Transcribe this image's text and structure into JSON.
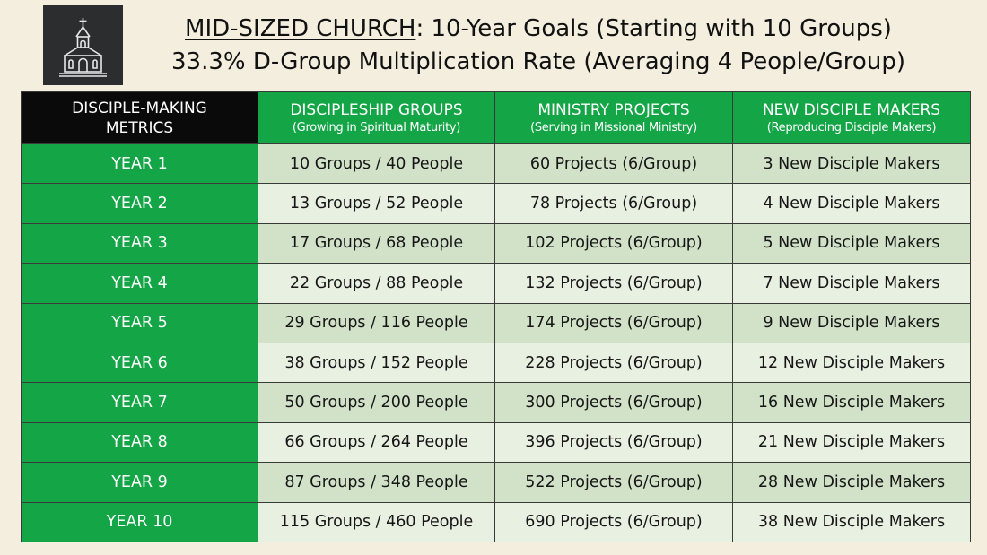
{
  "title": {
    "church": "MID-SIZED CHURCH",
    "rest": ": 10-Year Goals (Starting with 10 Groups)",
    "subtitle": "33.3% D-Group Multiplication Rate (Averaging 4 People/Group)"
  },
  "logo_icon": "church-icon",
  "colors": {
    "header_green": "#14a646",
    "corner_black": "#0a0a0a",
    "row_dark": "#d2e2c9",
    "row_light": "#e8f0e2",
    "background": "#f3eedd"
  },
  "table": {
    "headers": [
      {
        "main": "DISCIPLE-MAKING",
        "sub": "METRICS"
      },
      {
        "main": "DISCIPLESHIP GROUPS",
        "sub": "(Growing in Spiritual Maturity)"
      },
      {
        "main": "MINISTRY PROJECTS",
        "sub": "(Serving in Missional Ministry)"
      },
      {
        "main": "NEW DISCIPLE MAKERS",
        "sub": "(Reproducing Disciple Makers)"
      }
    ],
    "rows": [
      {
        "year": "YEAR 1",
        "groups": "10 Groups / 40 People",
        "projects": "60 Projects (6/Group)",
        "makers": "3 New Disciple Makers"
      },
      {
        "year": "YEAR 2",
        "groups": "13 Groups / 52 People",
        "projects": "78 Projects (6/Group)",
        "makers": "4 New Disciple Makers"
      },
      {
        "year": "YEAR 3",
        "groups": "17 Groups / 68 People",
        "projects": "102 Projects (6/Group)",
        "makers": "5 New Disciple Makers"
      },
      {
        "year": "YEAR 4",
        "groups": "22 Groups / 88 People",
        "projects": "132 Projects (6/Group)",
        "makers": "7 New Disciple Makers"
      },
      {
        "year": "YEAR 5",
        "groups": "29 Groups / 116 People",
        "projects": "174 Projects (6/Group)",
        "makers": "9 New Disciple Makers"
      },
      {
        "year": "YEAR 6",
        "groups": "38 Groups / 152 People",
        "projects": "228 Projects (6/Group)",
        "makers": "12 New Disciple Makers"
      },
      {
        "year": "YEAR 7",
        "groups": "50 Groups / 200 People",
        "projects": "300 Projects (6/Group)",
        "makers": "16 New Disciple Makers"
      },
      {
        "year": "YEAR 8",
        "groups": "66 Groups / 264 People",
        "projects": "396 Projects (6/Group)",
        "makers": "21 New Disciple Makers"
      },
      {
        "year": "YEAR 9",
        "groups": "87 Groups / 348 People",
        "projects": "522 Projects (6/Group)",
        "makers": "28 New Disciple Makers"
      },
      {
        "year": "YEAR 10",
        "groups": "115 Groups / 460 People",
        "projects": "690 Projects (6/Group)",
        "makers": "38 New Disciple Makers"
      }
    ]
  }
}
